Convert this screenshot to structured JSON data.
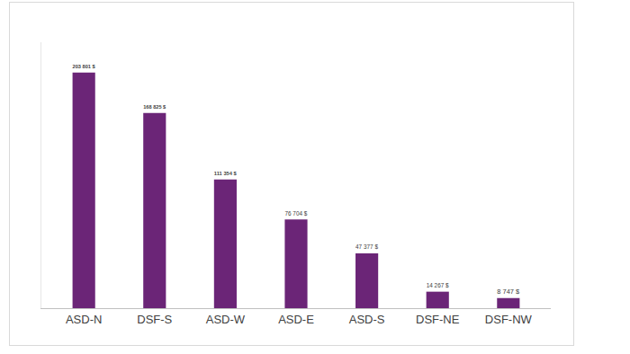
{
  "chart_data": {
    "type": "bar",
    "categories": [
      "ASD-N",
      "DSF-S",
      "ASD-W",
      "ASD-E",
      "ASD-S",
      "DSF-NE",
      "DSF-NW"
    ],
    "values": [
      203801,
      168825,
      111354,
      76704,
      47377,
      14267,
      8747
    ],
    "value_labels": [
      "203 801 $",
      "168 825 $",
      "111 354 $",
      "76 704 $",
      "47 377 $",
      "14 267 $",
      "8 747 $"
    ],
    "color": "#6b2577",
    "ylim": [
      0,
      230000
    ],
    "grid": false,
    "data_labels": true,
    "tick_labels": "x"
  }
}
